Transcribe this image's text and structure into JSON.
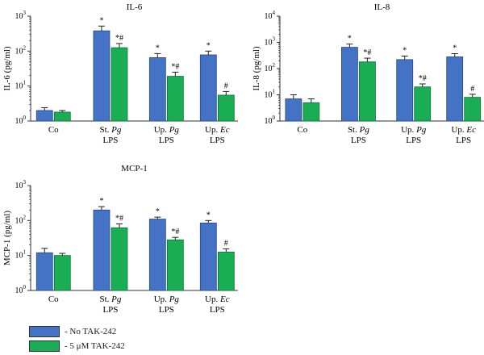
{
  "colors": {
    "no_tak": "#4472c4",
    "tak": "#1aae54",
    "no_tak_edge": "#27497f",
    "tak_edge": "#107035"
  },
  "legend": {
    "items": [
      {
        "dash": "- ",
        "text": "No TAK-242",
        "color": "#4472c4"
      },
      {
        "dash": "- ",
        "text": "5 μM TAK-242",
        "color": "#1aae54"
      }
    ]
  },
  "chart_data": [
    {
      "type": "bar",
      "title": "IL-6",
      "ylabel": "IL-6 (pg/ml)",
      "yscale": "log",
      "ylim": [
        1,
        1000
      ],
      "y_ticks": [
        {
          "base": "10",
          "exp": "0"
        },
        {
          "base": "10",
          "exp": "1"
        },
        {
          "base": "10",
          "exp": "2"
        },
        {
          "base": "10",
          "exp": "3"
        }
      ],
      "categories": [
        {
          "line1": "Co",
          "line1_italic": "",
          "line2": ""
        },
        {
          "line1": "St. ",
          "line1_italic": "Pg",
          "line2": "LPS"
        },
        {
          "line1": "Up. ",
          "line1_italic": "Pg",
          "line2": "LPS"
        },
        {
          "line1": "Up. ",
          "line1_italic": "Ec",
          "line2": "LPS"
        }
      ],
      "series": [
        {
          "name": "No TAK-242",
          "values": [
            2.0,
            380,
            65,
            78
          ],
          "error_upper": [
            2.4,
            520,
            85,
            100
          ],
          "annotations": [
            "",
            "*",
            "*",
            "*"
          ]
        },
        {
          "name": "5 μM TAK-242",
          "values": [
            1.8,
            125,
            19,
            5.5
          ],
          "error_upper": [
            2.0,
            165,
            25,
            7
          ],
          "annotations": [
            "",
            "*#",
            "*#",
            "#"
          ]
        }
      ],
      "grid": false
    },
    {
      "type": "bar",
      "title": "IL-8",
      "ylabel": "IL-8 (pg/ml)",
      "yscale": "log",
      "ylim": [
        1,
        10000
      ],
      "y_ticks": [
        {
          "base": "10",
          "exp": "0"
        },
        {
          "base": "10",
          "exp": "1"
        },
        {
          "base": "10",
          "exp": "2"
        },
        {
          "base": "10",
          "exp": "3"
        },
        {
          "base": "10",
          "exp": "4"
        }
      ],
      "categories": [
        {
          "line1": "Co",
          "line1_italic": "",
          "line2": ""
        },
        {
          "line1": "St. ",
          "line1_italic": "Pg",
          "line2": "LPS"
        },
        {
          "line1": "Up. ",
          "line1_italic": "Pg",
          "line2": "LPS"
        },
        {
          "line1": "Up. ",
          "line1_italic": "Ec",
          "line2": "LPS"
        }
      ],
      "series": [
        {
          "name": "No TAK-242",
          "values": [
            7,
            650,
            220,
            280
          ],
          "error_upper": [
            10,
            860,
            300,
            370
          ],
          "annotations": [
            "",
            "*",
            "*",
            "*"
          ]
        },
        {
          "name": "5 μM TAK-242",
          "values": [
            5,
            180,
            20,
            8
          ],
          "error_upper": [
            7,
            250,
            26,
            10.5
          ],
          "annotations": [
            "",
            "*#",
            "*#",
            "#"
          ]
        }
      ],
      "grid": false
    },
    {
      "type": "bar",
      "title": "MCP-1",
      "ylabel": "MCP-1 (pg/ml)",
      "yscale": "log",
      "ylim": [
        1,
        1000
      ],
      "y_ticks": [
        {
          "base": "10",
          "exp": "0"
        },
        {
          "base": "10",
          "exp": "1"
        },
        {
          "base": "10",
          "exp": "2"
        },
        {
          "base": "10",
          "exp": "3"
        }
      ],
      "categories": [
        {
          "line1": "Co",
          "line1_italic": "",
          "line2": ""
        },
        {
          "line1": "St. ",
          "line1_italic": "Pg",
          "line2": "LPS"
        },
        {
          "line1": "Up. ",
          "line1_italic": "Pg",
          "line2": "LPS"
        },
        {
          "line1": "Up. ",
          "line1_italic": "Ec",
          "line2": "LPS"
        }
      ],
      "series": [
        {
          "name": "No TAK-242",
          "values": [
            12,
            200,
            110,
            85
          ],
          "error_upper": [
            16,
            250,
            125,
            100
          ],
          "annotations": [
            "",
            "*",
            "*",
            "*"
          ]
        },
        {
          "name": "5 μM TAK-242",
          "values": [
            10,
            62,
            28,
            12.5
          ],
          "error_upper": [
            11.5,
            80,
            33,
            15.5
          ],
          "annotations": [
            "",
            "*#",
            "*#",
            "#"
          ]
        }
      ],
      "grid": false
    }
  ]
}
